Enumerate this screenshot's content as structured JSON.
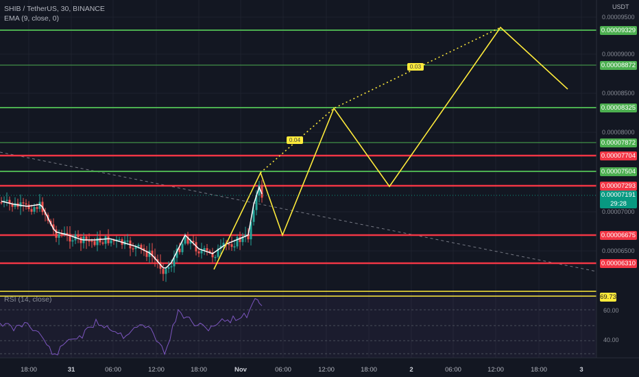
{
  "header": {
    "title": "SHIB / TetherUS, 30, BINANCE",
    "ema": "EMA (9, close, 0)",
    "currency": "USDT",
    "rsi_legend": "RSI (14, close)"
  },
  "price_axis": {
    "ticks": [
      "0.00009500",
      "0.00009000",
      "0.00008500",
      "0.00008000",
      "0.00007000",
      "0.00006500",
      "60.00",
      "40.00"
    ]
  },
  "levels": [
    {
      "price": "0.00009329",
      "color": "#4caf50",
      "kind": "resistance-green"
    },
    {
      "price": "0.00008872",
      "color": "#4caf50",
      "kind": "resistance-green"
    },
    {
      "price": "0.00008325",
      "color": "#4caf50",
      "kind": "resistance-green"
    },
    {
      "price": "0.00007872",
      "color": "#4caf50",
      "kind": "resistance-green"
    },
    {
      "price": "0.00007704",
      "color": "#f23645",
      "kind": "support-red"
    },
    {
      "price": "0.00007504",
      "color": "#4caf50",
      "kind": "resistance-green"
    },
    {
      "price": "0.00007293",
      "color": "#f23645",
      "kind": "support-red"
    },
    {
      "price": "0.00006675",
      "color": "#f23645",
      "kind": "support-red"
    },
    {
      "price": "0.00006310",
      "color": "#f23645",
      "kind": "support-red"
    }
  ],
  "last_price": {
    "price": "0.00007191",
    "countdown": "29:28",
    "color": "#089981"
  },
  "rsi_value": {
    "value": "69.73",
    "color": "#ffeb3b"
  },
  "projection_badges": [
    "0.04",
    "0.03"
  ],
  "time_axis": [
    "18:00",
    "31",
    "06:00",
    "12:00",
    "18:00",
    "Nov",
    "06:00",
    "12:00",
    "18:00",
    "2",
    "06:00",
    "12:00",
    "18:00",
    "3"
  ],
  "colors": {
    "background": "#131722",
    "bull": "#26a69a",
    "bear": "#ef5350",
    "ema": "#ffffff",
    "projection": "#ffeb3b",
    "rsi_line": "#7e57c2",
    "trendline": "#787b86"
  }
}
